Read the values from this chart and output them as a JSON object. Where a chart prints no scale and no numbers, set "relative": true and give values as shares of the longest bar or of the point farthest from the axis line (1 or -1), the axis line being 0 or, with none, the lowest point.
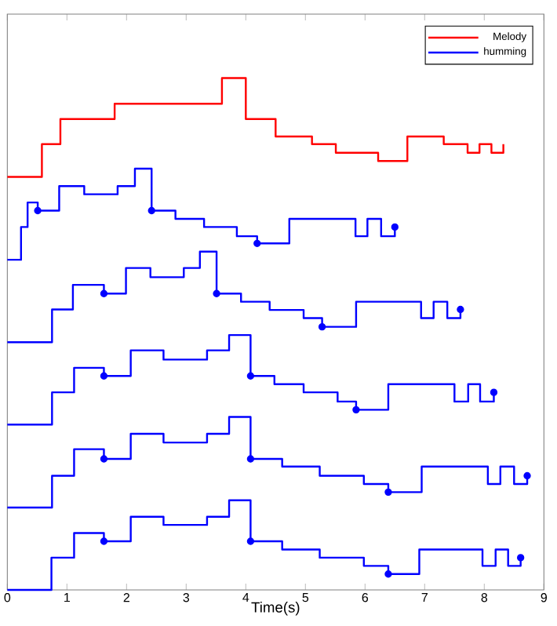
{
  "chart_data": {
    "type": "step",
    "xlabel": "Time(s)",
    "xlim": [
      0,
      9
    ],
    "xticks": [
      0,
      1,
      2,
      3,
      4,
      5,
      6,
      7,
      8,
      9
    ],
    "relative": true,
    "legend": "top right",
    "grid": false,
    "series": [
      {
        "name": "Melody",
        "color": "#ff0000",
        "x": [
          0,
          0.58,
          0.89,
          1.8,
          3.6,
          4.0,
          4.5,
          5.11,
          5.51,
          6.22,
          6.71,
          7.32,
          7.72,
          7.92,
          8.12,
          8.32
        ],
        "values": [
          0.807,
          0.871,
          0.92,
          0.95,
          1,
          0.92,
          0.886,
          0.871,
          0.854,
          0.838,
          0.886,
          0.871,
          0.854,
          0.871,
          0.854,
          0.871
        ]
      },
      {
        "name": "humming",
        "color": "#0000ff",
        "x": [
          0,
          0.23,
          0.34,
          0.51,
          0.87,
          1.29,
          1.85,
          2.14,
          2.42,
          2.82,
          3.3,
          3.85,
          4.19,
          4.73,
          5.84,
          6.04,
          6.27,
          6.5
        ],
        "values": [
          0.645,
          0.709,
          0.757,
          0.741,
          0.789,
          0.773,
          0.789,
          0.823,
          0.741,
          0.725,
          0.709,
          0.691,
          0.677,
          0.725,
          0.691,
          0.725,
          0.691,
          0.709
        ]
      },
      {
        "color": "#0000ff",
        "x": [
          0,
          0.75,
          1.1,
          1.62,
          1.99,
          2.4,
          2.96,
          3.23,
          3.51,
          3.92,
          4.4,
          4.97,
          5.28,
          5.85,
          6.94,
          7.15,
          7.38,
          7.6
        ],
        "values": [
          0.484,
          0.548,
          0.596,
          0.579,
          0.629,
          0.611,
          0.629,
          0.661,
          0.579,
          0.563,
          0.547,
          0.531,
          0.514,
          0.563,
          0.531,
          0.563,
          0.531,
          0.548
        ]
      },
      {
        "color": "#0000ff",
        "x": [
          0,
          0.75,
          1.12,
          1.62,
          2.07,
          2.62,
          3.35,
          3.72,
          4.08,
          4.48,
          4.97,
          5.54,
          5.85,
          6.39,
          7.5,
          7.73,
          7.93,
          8.16
        ],
        "values": [
          0.323,
          0.386,
          0.434,
          0.418,
          0.468,
          0.45,
          0.468,
          0.498,
          0.418,
          0.402,
          0.386,
          0.368,
          0.352,
          0.402,
          0.368,
          0.402,
          0.368,
          0.386
        ]
      },
      {
        "color": "#0000ff",
        "x": [
          0,
          0.75,
          1.12,
          1.62,
          2.07,
          2.62,
          3.35,
          3.72,
          4.08,
          4.61,
          5.24,
          5.98,
          6.39,
          6.95,
          8.06,
          8.27,
          8.5,
          8.72
        ],
        "values": [
          0.161,
          0.223,
          0.275,
          0.256,
          0.305,
          0.288,
          0.305,
          0.338,
          0.256,
          0.241,
          0.223,
          0.207,
          0.191,
          0.241,
          0.207,
          0.241,
          0.207,
          0.223
        ]
      },
      {
        "color": "#0000ff",
        "x": [
          0,
          0.74,
          1.12,
          1.62,
          2.07,
          2.62,
          3.35,
          3.72,
          4.08,
          4.61,
          5.24,
          5.98,
          6.39,
          6.91,
          7.97,
          8.19,
          8.4,
          8.61
        ],
        "values": [
          0,
          0.063,
          0.111,
          0.095,
          0.143,
          0.127,
          0.143,
          0.175,
          0.095,
          0.079,
          0.063,
          0.047,
          0.031,
          0.079,
          0.047,
          0.079,
          0.047,
          0.063
        ]
      },
      {
        "type": "scatter",
        "marker": "circle",
        "color": "#0000ff",
        "x": [
          0.51,
          2.42,
          4.19,
          6.5,
          1.62,
          3.51,
          5.28,
          7.6,
          1.62,
          4.08,
          5.85,
          8.16,
          1.62,
          4.08,
          6.39,
          8.72,
          1.62,
          4.08,
          6.39,
          8.61
        ],
        "values": [
          0.741,
          0.741,
          0.677,
          0.709,
          0.579,
          0.579,
          0.514,
          0.548,
          0.418,
          0.418,
          0.352,
          0.386,
          0.256,
          0.256,
          0.191,
          0.223,
          0.095,
          0.095,
          0.031,
          0.063
        ]
      }
    ]
  }
}
